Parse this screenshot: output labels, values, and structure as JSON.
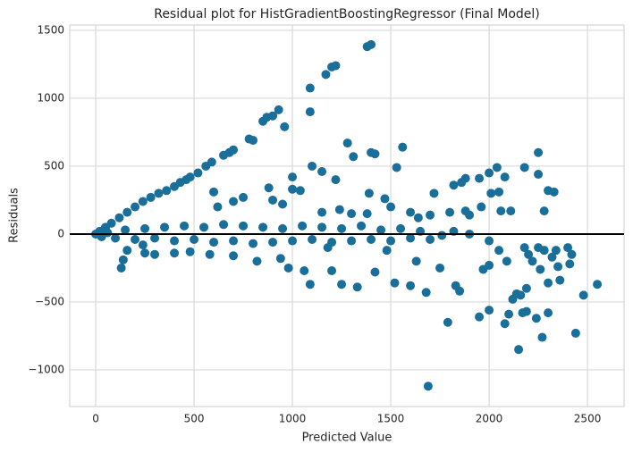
{
  "chart_data": {
    "type": "scatter",
    "title": "Residual plot for HistGradientBoostingRegressor (Final Model)",
    "x_label": "Predicted Value",
    "y_label": "Residuals",
    "color": "#1a6e9a",
    "grid": true,
    "reference_line": 0,
    "xlim": [
      -132,
      2686
    ],
    "ylim": [
      -1270,
      1539
    ],
    "xticks": [
      0,
      500,
      1000,
      1500,
      2000,
      2500
    ],
    "yticks": [
      {
        "value": -1000,
        "label": "−1000"
      },
      {
        "value": -500,
        "label": "−500"
      },
      0,
      500,
      1000,
      1500
    ],
    "x": [
      1380,
      1400,
      1200,
      1220,
      1170,
      1090,
      1090,
      930,
      870,
      850,
      960,
      900,
      800,
      780,
      680,
      700,
      650,
      590,
      560,
      520,
      480,
      460,
      430,
      400,
      360,
      320,
      280,
      240,
      200,
      160,
      120,
      80,
      50,
      20,
      1280,
      1310,
      1150,
      1100,
      1000,
      1040,
      1000,
      880,
      1420,
      1400,
      1560,
      1530,
      1220,
      1390,
      1470,
      1720,
      1820,
      1880,
      1860,
      1950,
      2000,
      2040,
      2080,
      2180,
      2250,
      2250,
      2300,
      2330,
      2280,
      2060,
      2110,
      1960,
      2010,
      2050,
      1700,
      1880,
      1800,
      1900,
      1600,
      950,
      750,
      700,
      620,
      600,
      900,
      1150,
      1300,
      1380,
      1240,
      1500,
      1640,
      1690,
      2150,
      2270,
      2440,
      2000,
      1950,
      2100,
      2170,
      2190,
      2240,
      2300,
      2080,
      1790,
      2160,
      2190,
      2120,
      2140,
      2480,
      2550,
      2360,
      2300,
      2260,
      2350,
      2410,
      2420,
      2320,
      2200,
      2090,
      2000,
      1970,
      1850,
      1830,
      1750,
      1680,
      1600,
      1630,
      1520,
      1420,
      1330,
      1250,
      1200,
      1090,
      1060,
      980,
      940,
      820,
      700,
      580,
      480,
      400,
      300,
      250,
      140,
      130,
      160,
      240,
      2250,
      2180,
      2280,
      2220,
      2340,
      2050,
      2400,
      1480,
      1180,
      0,
      30,
      60,
      100,
      150,
      200,
      250,
      300,
      350,
      400,
      450,
      500,
      550,
      600,
      650,
      700,
      750,
      800,
      850,
      900,
      950,
      1000,
      1050,
      1100,
      1150,
      1200,
      1250,
      1300,
      1350,
      1400,
      1450,
      1500,
      1550,
      1600,
      1650,
      1700,
      1760,
      1820,
      1900,
      2000
    ],
    "values": [
      1380,
      1395,
      1230,
      1240,
      1175,
      1075,
      900,
      915,
      860,
      830,
      790,
      870,
      690,
      700,
      600,
      620,
      580,
      530,
      500,
      450,
      420,
      400,
      380,
      350,
      320,
      300,
      270,
      240,
      200,
      160,
      120,
      80,
      50,
      20,
      670,
      570,
      460,
      500,
      420,
      320,
      330,
      340,
      590,
      600,
      640,
      490,
      400,
      300,
      260,
      300,
      360,
      410,
      380,
      410,
      450,
      490,
      420,
      490,
      600,
      440,
      320,
      310,
      170,
      170,
      170,
      200,
      300,
      310,
      140,
      170,
      160,
      140,
      160,
      220,
      270,
      240,
      200,
      310,
      250,
      160,
      150,
      150,
      180,
      200,
      120,
      -1120,
      -850,
      -760,
      -730,
      -560,
      -610,
      -590,
      -580,
      -570,
      -620,
      -580,
      -660,
      -650,
      -450,
      -400,
      -480,
      -440,
      -450,
      -370,
      -340,
      -360,
      -260,
      -240,
      -220,
      -150,
      -170,
      -150,
      -200,
      -230,
      -260,
      -420,
      -380,
      -250,
      -430,
      -380,
      -200,
      -360,
      -280,
      -390,
      -370,
      -270,
      -370,
      -270,
      -250,
      -180,
      -200,
      -160,
      -150,
      -130,
      -140,
      -150,
      -140,
      -190,
      -250,
      -120,
      -80,
      -100,
      -100,
      -120,
      -200,
      -120,
      -120,
      -100,
      -120,
      -100,
      0,
      -20,
      10,
      -30,
      30,
      -40,
      40,
      -30,
      50,
      -50,
      60,
      -40,
      50,
      -60,
      70,
      -50,
      60,
      -70,
      50,
      -60,
      40,
      -50,
      60,
      -40,
      50,
      -60,
      40,
      -50,
      60,
      -40,
      30,
      -50,
      40,
      -30,
      20,
      -40,
      -10,
      20,
      0,
      -50
    ]
  }
}
